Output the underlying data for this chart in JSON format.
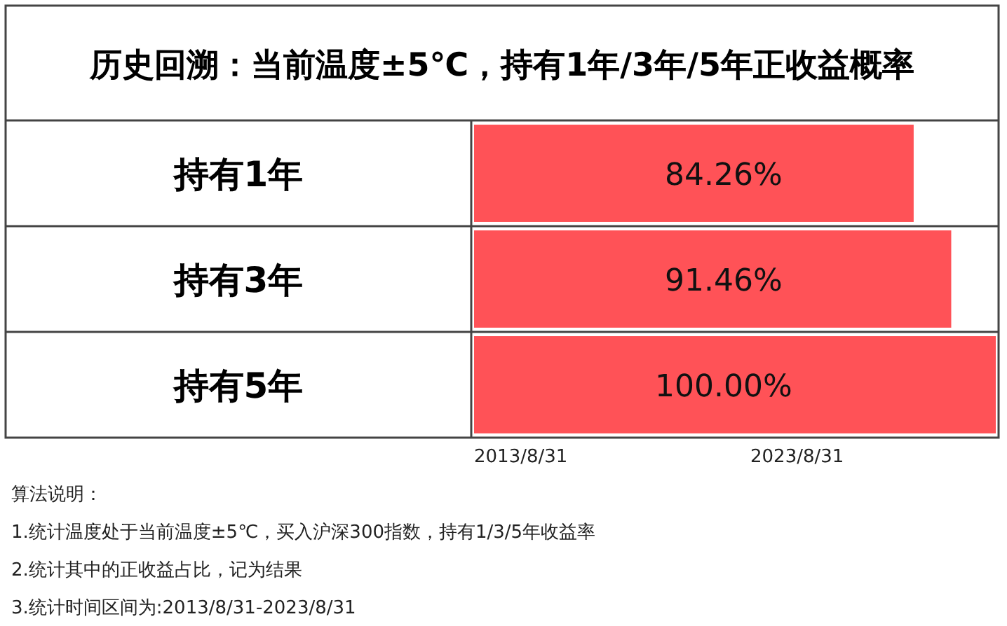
{
  "chart_data": {
    "type": "bar",
    "orientation": "horizontal",
    "title": "历史回溯：当前温度±5℃，持有1年/3年/5年正收益概率",
    "categories": [
      "持有1年",
      "持有3年",
      "持有5年"
    ],
    "values": [
      84.26,
      91.46,
      100.0
    ],
    "value_labels": [
      "84.26%",
      "91.46%",
      "100.00%"
    ],
    "color": "#ff5257",
    "xlim": [
      0,
      100
    ],
    "tick_labels": "y",
    "annotations": [
      "2013/8/31",
      "2023/8/31",
      "算法说明：",
      "1.统计温度处于当前温度±5℃，买入沪深300指数，持有1/3/5年收益率",
      "2.统计其中的正收益占比，记为结果",
      "3.统计时间区间为:2013/8/31-2023/8/31"
    ]
  }
}
